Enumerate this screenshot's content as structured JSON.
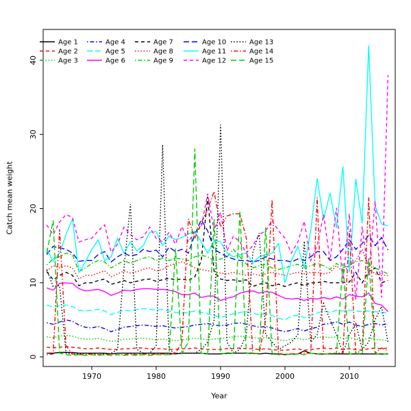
{
  "figure": {
    "xlabel": "Year",
    "ylabel": "Catch mean weight",
    "background": "#ffffff",
    "axis_color": "#000000"
  },
  "chart_data": {
    "type": "line",
    "title": "",
    "xlabel": "Year",
    "ylabel": "Catch mean weight",
    "xlim": [
      1962.4,
      2017.1
    ],
    "ylim": [
      -1.3,
      44.2
    ],
    "xticks": [
      1970,
      1980,
      1990,
      2000,
      2010
    ],
    "yticks": [
      0,
      10,
      20,
      30,
      40
    ],
    "grid": false,
    "legend_position": "top-left-inside",
    "legend_columns": 5,
    "x": [
      1963,
      1964,
      1965,
      1966,
      1967,
      1968,
      1969,
      1970,
      1971,
      1972,
      1973,
      1974,
      1975,
      1976,
      1977,
      1978,
      1979,
      1980,
      1981,
      1982,
      1983,
      1984,
      1985,
      1986,
      1987,
      1988,
      1989,
      1990,
      1991,
      1992,
      1993,
      1994,
      1995,
      1996,
      1997,
      1998,
      1999,
      2000,
      2001,
      2002,
      2003,
      2004,
      2005,
      2006,
      2007,
      2008,
      2009,
      2010,
      2011,
      2012,
      2013,
      2014,
      2015,
      2016
    ],
    "series": [
      {
        "name": "Age 1",
        "color": "#000000",
        "linestyle": "solid",
        "values": [
          0.5,
          0.5,
          0.6,
          0.6,
          0.6,
          0.5,
          0.5,
          0.5,
          0.5,
          0.5,
          0.4,
          0.5,
          0.5,
          0.5,
          0.5,
          0.5,
          0.5,
          0.5,
          0.5,
          0.5,
          0.4,
          0.5,
          0.5,
          0.5,
          0.5,
          0.4,
          0.4,
          0.4,
          0.5,
          0.5,
          0.5,
          0.5,
          0.5,
          0.4,
          0.5,
          0.4,
          0.4,
          0.3,
          0.4,
          0.4,
          0.8,
          0.5,
          0.4,
          0.4,
          0.4,
          0.4,
          0.4,
          0.4,
          0.4,
          0.4,
          0.4,
          0.4,
          0.4,
          0.4
        ]
      },
      {
        "name": "Age 2",
        "color": "#ff0000",
        "linestyle": "dashed",
        "values": [
          1.3,
          1.2,
          1.3,
          1.4,
          1.3,
          1.2,
          1.1,
          1.1,
          1.2,
          1.1,
          1.0,
          1.0,
          1.1,
          1.1,
          1.2,
          1.2,
          1.1,
          1.1,
          1.1,
          1.0,
          1.0,
          1.1,
          1.1,
          1.2,
          1.1,
          1.0,
          1.0,
          1.0,
          1.1,
          1.1,
          1.2,
          1.1,
          1.1,
          1.0,
          1.1,
          1.0,
          0.9,
          0.9,
          1.0,
          1.1,
          0.9,
          1.0,
          1.1,
          1.2,
          1.1,
          1.2,
          1.0,
          1.1,
          1.0,
          0.9,
          1.1,
          1.2,
          1.1,
          1.2
        ]
      },
      {
        "name": "Age 3",
        "color": "#00cd00",
        "linestyle": "dotted",
        "values": [
          2.7,
          2.6,
          2.8,
          2.9,
          2.8,
          2.5,
          2.4,
          2.4,
          2.5,
          2.3,
          2.1,
          2.2,
          2.4,
          2.4,
          2.5,
          2.5,
          2.4,
          2.3,
          2.4,
          2.3,
          2.2,
          2.3,
          2.4,
          2.5,
          2.4,
          2.3,
          2.4,
          2.5,
          2.6,
          2.7,
          2.8,
          2.7,
          2.6,
          2.5,
          2.6,
          2.5,
          2.3,
          2.2,
          2.4,
          2.5,
          2.3,
          2.5,
          2.6,
          2.7,
          2.6,
          2.7,
          2.5,
          2.6,
          2.4,
          2.3,
          2.5,
          2.4,
          2.3,
          2.2
        ]
      },
      {
        "name": "Age 4",
        "color": "#0000ff",
        "linestyle": "dashdot",
        "values": [
          4.6,
          4.4,
          4.7,
          5.0,
          4.8,
          4.3,
          4.0,
          3.9,
          4.1,
          3.8,
          3.4,
          3.7,
          4.0,
          4.1,
          4.2,
          4.3,
          4.2,
          4.1,
          4.2,
          4.0,
          3.9,
          4.0,
          4.1,
          4.3,
          4.4,
          4.5,
          4.3,
          4.2,
          4.3,
          4.5,
          4.6,
          4.4,
          4.2,
          4.0,
          4.1,
          3.9,
          3.6,
          3.4,
          3.6,
          3.8,
          3.5,
          3.8,
          4.0,
          4.4,
          4.5,
          4.7,
          4.4,
          4.7,
          4.3,
          4.1,
          4.4,
          4.5,
          4.3,
          4.5
        ]
      },
      {
        "name": "Age 5",
        "color": "#00ffff",
        "linestyle": "longdash",
        "values": [
          7.0,
          6.7,
          6.9,
          7.0,
          6.8,
          6.3,
          6.2,
          6.3,
          6.4,
          6.2,
          5.7,
          6.0,
          6.3,
          6.2,
          6.4,
          6.5,
          6.4,
          6.3,
          6.4,
          6.2,
          6.0,
          5.9,
          6.0,
          6.2,
          6.0,
          5.8,
          5.6,
          5.3,
          5.6,
          5.8,
          6.0,
          6.1,
          5.9,
          5.7,
          5.8,
          5.6,
          5.2,
          5.0,
          5.5,
          5.6,
          5.3,
          5.6,
          5.9,
          6.2,
          6.0,
          6.3,
          6.2,
          6.3,
          6.2,
          6.1,
          6.2,
          6.1,
          6.0,
          5.9
        ]
      },
      {
        "name": "Age 6",
        "color": "#ff00ff",
        "linestyle": "solid",
        "values": [
          9.3,
          9.0,
          9.9,
          10.0,
          9.9,
          9.2,
          8.9,
          9.0,
          9.1,
          8.8,
          8.3,
          8.6,
          9.0,
          8.9,
          9.1,
          9.2,
          9.2,
          9.1,
          9.1,
          9.0,
          8.8,
          8.4,
          8.4,
          8.6,
          8.0,
          8.2,
          8.2,
          7.6,
          7.9,
          8.1,
          8.6,
          8.8,
          8.9,
          8.6,
          8.8,
          8.7,
          8.3,
          7.9,
          7.8,
          7.9,
          7.6,
          7.9,
          7.8,
          8.0,
          7.8,
          8.1,
          7.8,
          8.4,
          8.2,
          8.1,
          8.6,
          7.2,
          7.0,
          6.1
        ]
      },
      {
        "name": "Age 7",
        "color": "#000000",
        "linestyle": "dashed",
        "values": [
          11.5,
          10.4,
          11.0,
          11.4,
          11.0,
          9.6,
          10.0,
          10.0,
          10.3,
          10.5,
          9.8,
          10.0,
          10.3,
          10.0,
          10.2,
          10.4,
          10.5,
          10.2,
          10.4,
          10.6,
          10.4,
          10.5,
          10.3,
          10.8,
          13.0,
          21.6,
          11.5,
          10.5,
          10.3,
          10.4,
          10.2,
          10.4,
          9.5,
          9.8,
          10.0,
          9.6,
          9.8,
          9.5,
          9.8,
          10.0,
          9.6,
          10.0,
          10.0,
          10.2,
          10.0,
          10.0,
          10.0,
          10.1,
          11.4,
          10.0,
          11.5,
          12.0,
          10.0,
          10.3
        ]
      },
      {
        "name": "Age 8",
        "color": "#ff0000",
        "linestyle": "dotted",
        "values": [
          11.6,
          12.3,
          12.0,
          12.3,
          12.0,
          10.5,
          11.0,
          11.0,
          11.3,
          11.6,
          10.8,
          11.2,
          11.6,
          11.3,
          11.5,
          11.8,
          12.0,
          11.6,
          11.8,
          12.3,
          12.6,
          12.8,
          12.5,
          12.0,
          11.8,
          11.6,
          11.5,
          11.3,
          11.2,
          11.4,
          11.2,
          11.0,
          11.2,
          11.0,
          11.2,
          11.4,
          11.2,
          11.0,
          11.2,
          11.4,
          11.2,
          11.4,
          11.4,
          11.2,
          11.4,
          12.3,
          11.5,
          12.3,
          13.0,
          14.5,
          12.0,
          11.2,
          11.0,
          11.0
        ]
      },
      {
        "name": "Age 9",
        "color": "#00cd00",
        "linestyle": "dashdot",
        "values": [
          12.4,
          13.2,
          13.5,
          14.0,
          13.8,
          11.5,
          12.0,
          12.6,
          13.0,
          12.8,
          12.0,
          12.5,
          13.0,
          12.6,
          13.0,
          13.3,
          13.5,
          13.0,
          13.3,
          13.0,
          13.3,
          13.2,
          13.0,
          13.5,
          13.7,
          13.5,
          13.0,
          13.2,
          13.5,
          14.5,
          13.5,
          12.5,
          12.0,
          12.3,
          12.5,
          12.0,
          11.8,
          12.0,
          12.3,
          12.5,
          12.0,
          12.3,
          12.6,
          12.3,
          11.8,
          12.6,
          12.0,
          12.4,
          12.8,
          13.0,
          12.5,
          12.0,
          11.6,
          11.2
        ]
      },
      {
        "name": "Age 10",
        "color": "#0000ff",
        "linestyle": "longdash",
        "values": [
          13.8,
          14.9,
          14.7,
          14.5,
          14.0,
          12.9,
          13.0,
          13.0,
          13.8,
          14.2,
          12.8,
          13.5,
          14.0,
          13.6,
          13.8,
          14.5,
          14.2,
          14.4,
          13.5,
          14.8,
          14.2,
          14.5,
          14.0,
          16.5,
          18.5,
          17.0,
          14.5,
          14.0,
          13.5,
          13.2,
          13.0,
          13.0,
          12.8,
          13.0,
          13.5,
          13.2,
          13.0,
          13.0,
          12.8,
          13.2,
          13.0,
          13.5,
          14.2,
          14.2,
          13.0,
          13.5,
          14.5,
          15.8,
          14.5,
          15.3,
          16.4,
          15.0,
          16.1,
          14.4
        ]
      },
      {
        "name": "Age 11",
        "color": "#00ffff",
        "linestyle": "solid",
        "values": [
          14.6,
          12.9,
          14.0,
          16.5,
          18.6,
          11.4,
          12.8,
          14.5,
          15.8,
          13.0,
          13.5,
          16.0,
          14.0,
          15.5,
          14.3,
          15.0,
          16.8,
          16.9,
          15.0,
          16.3,
          15.8,
          16.1,
          16.6,
          16.9,
          15.5,
          14.0,
          15.7,
          15.5,
          14.0,
          13.5,
          13.8,
          14.0,
          12.7,
          13.5,
          13.8,
          14.0,
          15.3,
          10.0,
          13.0,
          14.9,
          12.0,
          17.0,
          24.1,
          18.5,
          22.1,
          17.4,
          25.7,
          11.4,
          24.0,
          18.0,
          42.0,
          20.4,
          17.9,
          17.7
        ]
      },
      {
        "name": "Age 12",
        "color": "#ff00ff",
        "linestyle": "dashed",
        "values": [
          17.8,
          16.5,
          18.2,
          19.2,
          18.8,
          15.5,
          15.8,
          16.0,
          17.0,
          17.8,
          14.1,
          15.2,
          17.5,
          16.5,
          15.8,
          16.2,
          17.5,
          16.0,
          15.5,
          16.8,
          15.2,
          17.6,
          15.5,
          16.9,
          17.5,
          22.0,
          17.0,
          19.5,
          14.3,
          16.3,
          15.5,
          14.0,
          15.0,
          16.5,
          17.0,
          18.4,
          17.0,
          16.0,
          14.0,
          15.5,
          18.3,
          13.0,
          15.0,
          19.2,
          13.0,
          20.1,
          10.0,
          19.3,
          7.7,
          17.6,
          11.0,
          21.0,
          8.0,
          38.0
        ]
      },
      {
        "name": "Age 13",
        "color": "#000000",
        "linestyle": "dotted",
        "values": [
          11.8,
          9.5,
          9.6,
          0.5,
          0.4,
          0.4,
          0.5,
          0.4,
          0.5,
          0.4,
          0.5,
          1.0,
          12.0,
          20.6,
          1.0,
          0.5,
          0.5,
          1.5,
          28.6,
          1.0,
          0.5,
          0.5,
          0.5,
          0.5,
          1.0,
          2.0,
          5.0,
          31.3,
          2.0,
          0.5,
          1.0,
          3.0,
          14.0,
          16.7,
          3.0,
          2.0,
          1.0,
          1.5,
          2.0,
          3.0,
          15.6,
          2.0,
          3.0,
          7.2,
          5.0,
          3.0,
          0.5,
          3.0,
          4.5,
          1.0,
          2.0,
          5.0,
          6.8,
          2.0
        ]
      },
      {
        "name": "Age 14",
        "color": "#ff0000",
        "linestyle": "dashdot",
        "values": [
          0.3,
          0.4,
          17.2,
          1.5,
          0.4,
          0.3,
          0.3,
          0.4,
          0.3,
          0.3,
          0.4,
          0.3,
          0.3,
          0.4,
          0.3,
          0.4,
          0.3,
          0.4,
          0.4,
          0.3,
          0.5,
          2.0,
          18.6,
          16.0,
          18.0,
          20.0,
          22.3,
          17.5,
          19.0,
          19.3,
          19.3,
          16.0,
          0.5,
          0.4,
          5.0,
          21.2,
          0.5,
          0.3,
          0.4,
          0.4,
          0.5,
          0.5,
          21.5,
          0.4,
          0.4,
          0.5,
          0.5,
          17.0,
          0.4,
          1.0,
          21.5,
          0.5,
          1.2,
          0.8
        ]
      },
      {
        "name": "Age 15",
        "color": "#00cd00",
        "linestyle": "longdash",
        "values": [
          14.0,
          18.4,
          0.5,
          0.3,
          0.2,
          0.3,
          0.2,
          0.3,
          0.2,
          0.3,
          0.2,
          0.3,
          0.2,
          0.3,
          0.2,
          0.3,
          0.2,
          0.3,
          0.3,
          0.3,
          14.6,
          0.5,
          2.0,
          28.1,
          0.5,
          0.4,
          18.6,
          0.5,
          0.4,
          0.5,
          19.7,
          0.5,
          0.4,
          0.5,
          17.5,
          0.5,
          0.3,
          0.4,
          0.3,
          0.4,
          0.3,
          0.5,
          0.4,
          0.3,
          0.5,
          0.5,
          12.6,
          0.4,
          0.5,
          0.4,
          13.3,
          0.5,
          0.3,
          0.5
        ]
      }
    ]
  }
}
